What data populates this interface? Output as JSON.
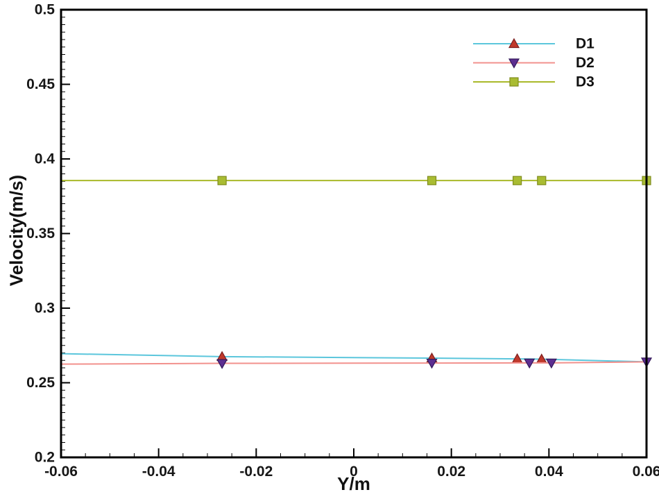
{
  "figure": {
    "background": "#ffffff",
    "frame_color": "#000000"
  },
  "chart_data": {
    "type": "line",
    "title": "",
    "xlabel": "Y/m",
    "ylabel": "Velocity(m/s)",
    "xlim": [
      -0.06,
      0.06
    ],
    "ylim": [
      0.2,
      0.5
    ],
    "x_major_ticks": [
      -0.06,
      -0.04,
      -0.02,
      0,
      0.02,
      0.04,
      0.06
    ],
    "x_tick_labels": [
      "-0.06",
      "-0.04",
      "-0.02",
      "0",
      "0.02",
      "0.04",
      "0.06"
    ],
    "x_minor_step": 0.005,
    "y_major_ticks": [
      0.2,
      0.25,
      0.3,
      0.35,
      0.4,
      0.45,
      0.5
    ],
    "y_tick_labels": [
      "0.2",
      "0.25",
      "0.3",
      "0.35",
      "0.4",
      "0.45",
      "0.5"
    ],
    "y_minor_step": 0.005,
    "grid": false,
    "legend_position": "upper-right",
    "series": [
      {
        "name": "D1",
        "line_color": "#5bc6dc",
        "line_width": 2,
        "marker": "triangle-up",
        "marker_fill": "#c0392b",
        "marker_stroke": "#7c1f1f",
        "line": {
          "x": [
            -0.06,
            -0.027,
            0.016,
            0.0335,
            0.0385,
            0.06
          ],
          "y": [
            0.2695,
            0.2675,
            0.2665,
            0.266,
            0.2658,
            0.264
          ]
        },
        "markers": {
          "x": [
            -0.027,
            0.016,
            0.0335,
            0.0385
          ],
          "y": [
            0.2675,
            0.2665,
            0.266,
            0.2658
          ]
        }
      },
      {
        "name": "D2",
        "line_color": "#f2918d",
        "line_width": 2,
        "marker": "triangle-down",
        "marker_fill": "#5d2e91",
        "marker_stroke": "#33195a",
        "line": {
          "x": [
            -0.06,
            -0.027,
            0.016,
            0.036,
            0.0405,
            0.06
          ],
          "y": [
            0.2625,
            0.263,
            0.2632,
            0.2633,
            0.2633,
            0.264
          ]
        },
        "markers": {
          "x": [
            -0.027,
            0.016,
            0.036,
            0.0405,
            0.06
          ],
          "y": [
            0.263,
            0.2632,
            0.2633,
            0.2633,
            0.264
          ]
        }
      },
      {
        "name": "D3",
        "line_color": "#a9b929",
        "line_width": 2,
        "marker": "square",
        "marker_fill": "#a9bc32",
        "marker_stroke": "#7f8c1e",
        "line": {
          "x": [
            -0.06,
            -0.027,
            0.016,
            0.0335,
            0.0385,
            0.06
          ],
          "y": [
            0.3855,
            0.3855,
            0.3855,
            0.3855,
            0.3855,
            0.3855
          ]
        },
        "markers": {
          "x": [
            -0.027,
            0.016,
            0.0335,
            0.0385,
            0.06
          ],
          "y": [
            0.3855,
            0.3855,
            0.3855,
            0.3855,
            0.3855
          ]
        }
      }
    ]
  },
  "legend": {
    "labels": [
      "D1",
      "D2",
      "D3"
    ]
  }
}
